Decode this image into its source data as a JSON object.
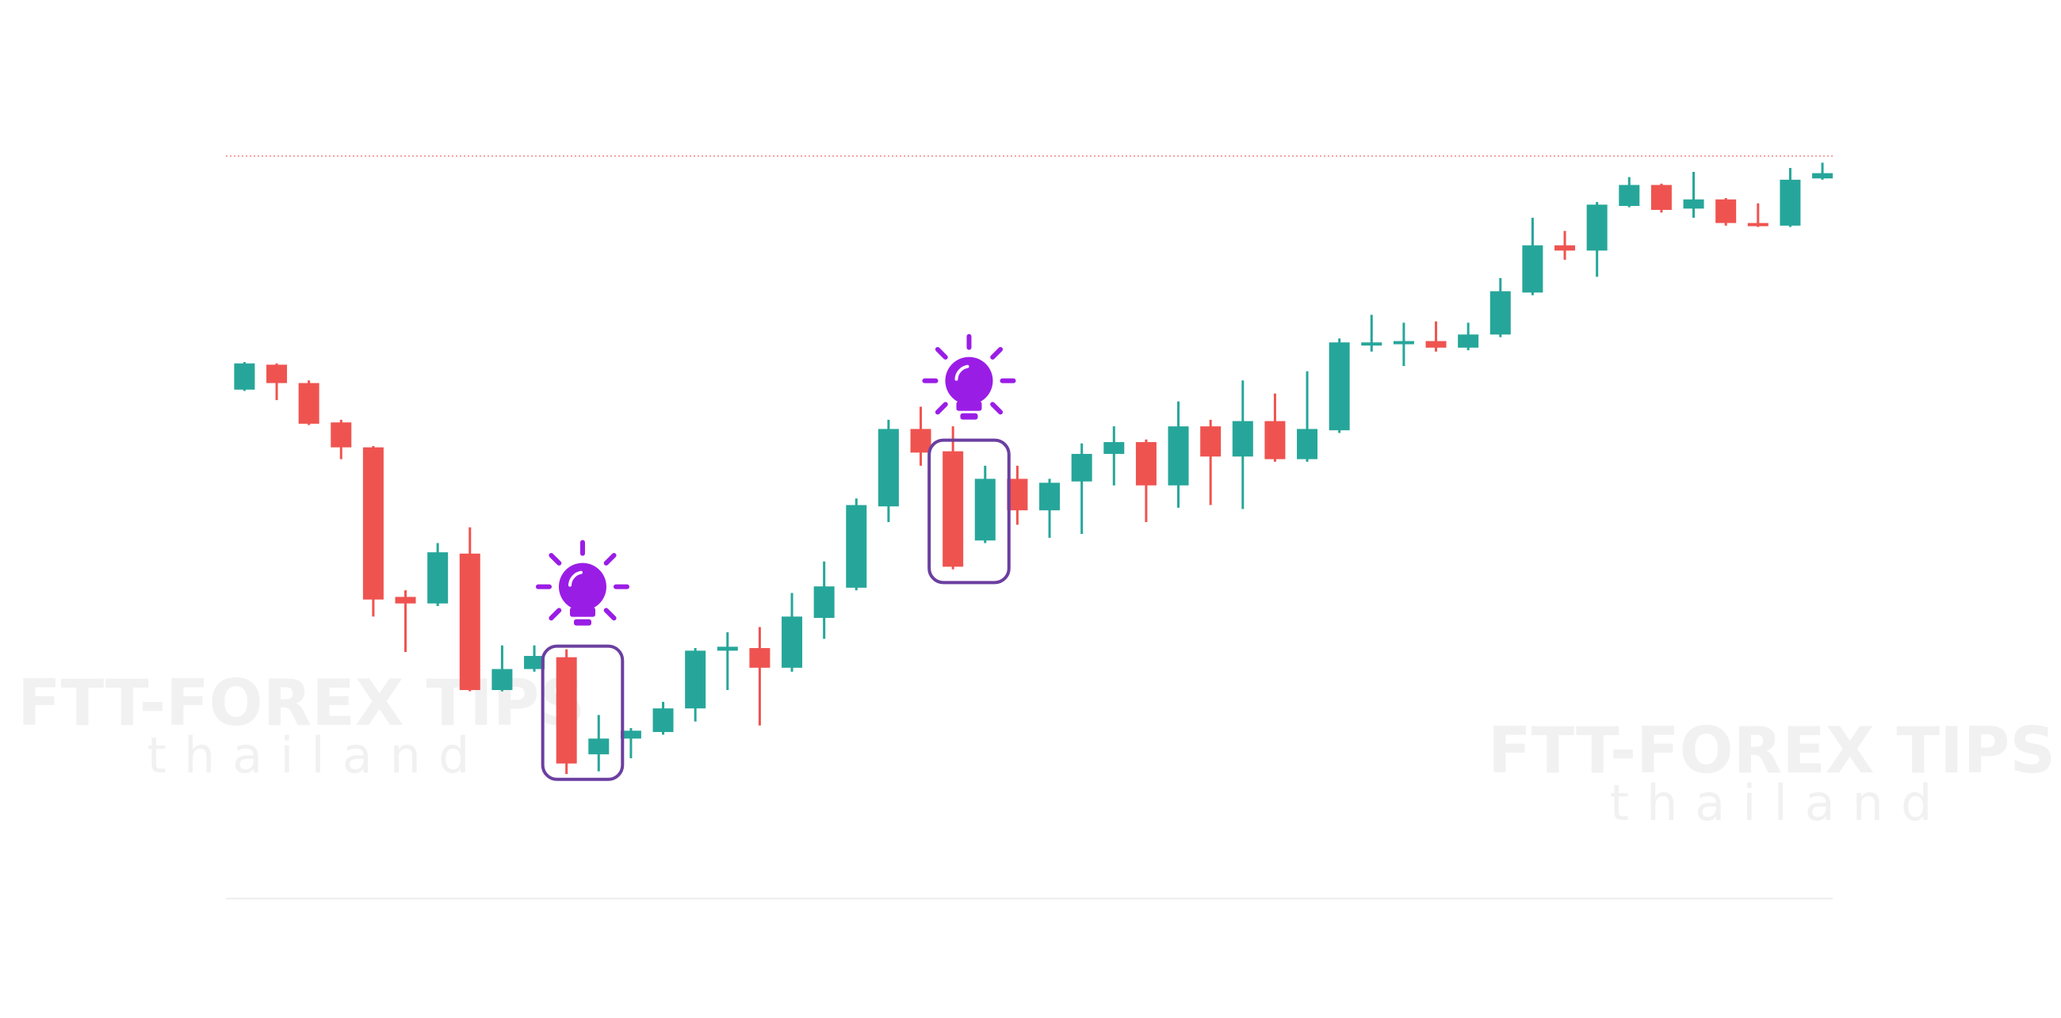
{
  "chart_data": {
    "type": "candlestick",
    "watermark": {
      "title": "FTT-FOREX TIPS",
      "subtitle": "thailand"
    },
    "ylim": [
      0,
      776
    ],
    "up_color": "#26a69a",
    "down_color": "#ef5350",
    "reference_line": 657,
    "baseline": 91,
    "highlight_groups": [
      [
        10,
        11
      ],
      [
        22,
        23
      ]
    ],
    "open": [
      479,
      498,
      484,
      454,
      435,
      321,
      316,
      354,
      250,
      266,
      275,
      201,
      213,
      218,
      236,
      280,
      282,
      267,
      305,
      328,
      390,
      449,
      432,
      364,
      411,
      387,
      409,
      430,
      439,
      406,
      451,
      428,
      455,
      426,
      448,
      514,
      514,
      516,
      511,
      521,
      553,
      589,
      585,
      619,
      635,
      617,
      624,
      606,
      604,
      640
    ],
    "high": [
      500,
      499,
      486,
      456,
      436,
      326,
      362,
      374,
      284,
      284,
      281,
      231,
      221,
      241,
      282,
      294,
      298,
      324,
      348,
      396,
      456,
      466,
      451,
      421,
      421,
      411,
      438,
      451,
      441,
      470,
      456,
      486,
      476,
      493,
      518,
      536,
      530,
      531,
      530,
      564,
      610,
      600,
      622,
      641,
      636,
      645,
      625,
      621,
      648,
      652
    ],
    "low": [
      478,
      471,
      452,
      426,
      306,
      279,
      314,
      249,
      249,
      264,
      186,
      188,
      198,
      216,
      226,
      250,
      223,
      264,
      289,
      326,
      378,
      421,
      342,
      362,
      376,
      366,
      369,
      406,
      378,
      389,
      391,
      388,
      424,
      424,
      446,
      508,
      497,
      508,
      509,
      519,
      551,
      578,
      565,
      618,
      614,
      610,
      604,
      603,
      603,
      639
    ],
    "close": [
      499,
      484,
      453,
      435,
      319,
      316,
      355,
      250,
      266,
      276,
      194,
      213,
      219,
      236,
      280,
      283,
      267,
      306,
      329,
      391,
      449,
      431,
      344,
      411,
      387,
      408,
      430,
      439,
      406,
      451,
      428,
      455,
      426,
      449,
      515,
      515,
      516,
      511,
      521,
      554,
      589,
      585,
      620,
      635,
      616,
      624,
      606,
      604,
      639,
      644
    ]
  }
}
